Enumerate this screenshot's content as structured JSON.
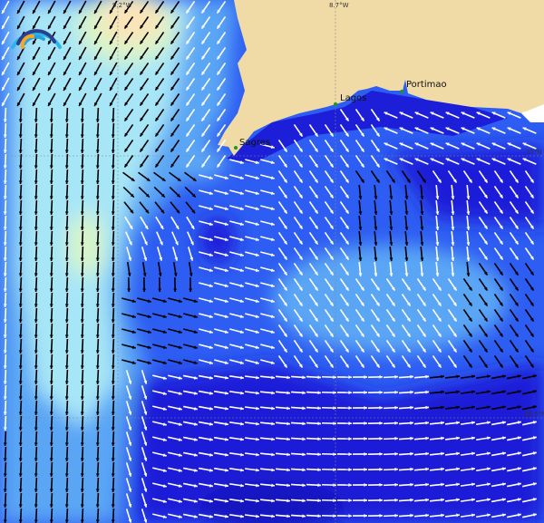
{
  "map": {
    "places": [
      {
        "name": "Sagres"
      },
      {
        "name": "Lagos"
      },
      {
        "name": "Portimao"
      }
    ],
    "grid_labels": {
      "lon_west": "9.2°W",
      "lon_east": "8.7°W",
      "lat_north": "37°N",
      "lat_south": "36.5°N"
    },
    "colors": {
      "land": "#f0dba6",
      "deep_blue": "#1c1ed8",
      "mid_blue": "#2d5df2",
      "light_blue": "#5aa6f5",
      "cyan": "#a7e6f6",
      "pale_green": "#d8f5c8",
      "pale_orange": "#fbe4b8"
    },
    "logo": "wave-arcs-logo"
  }
}
